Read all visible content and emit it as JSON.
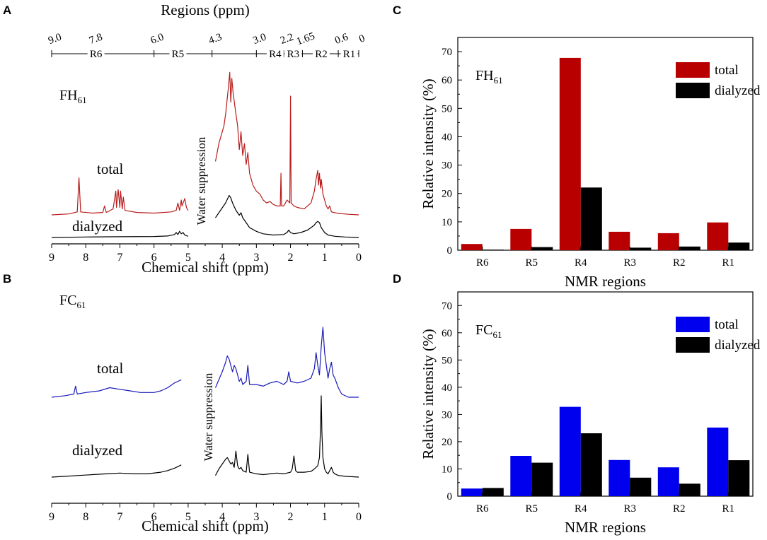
{
  "panels": {
    "A": {
      "letter": "A",
      "regions_title": "Regions (ppm)",
      "region_ticks": [
        "9.0",
        "7.8",
        "6.0",
        "4.3",
        "3.0",
        "2.2",
        "1.65",
        "0.6",
        "0"
      ],
      "region_tick_values": [
        9.0,
        7.8,
        6.0,
        4.3,
        3.0,
        2.2,
        1.65,
        0.6,
        0.0
      ],
      "region_names": [
        "R6",
        "R5",
        "R4",
        "R3",
        "R2",
        "R1"
      ],
      "sample_main": "FH",
      "sample_sub": "61",
      "total_label": "total",
      "dialyzed_label": "dialyzed",
      "water_label": "Water suppression",
      "x_ticks": [
        "9",
        "8",
        "7",
        "6",
        "5",
        "4",
        "3",
        "2",
        "1",
        "0"
      ],
      "xlabel": "Chemical shift (ppm)",
      "total_color": "#b81c1c",
      "dialyzed_color": "#000000"
    },
    "B": {
      "letter": "B",
      "sample_main": "FC",
      "sample_sub": "61",
      "total_label": "total",
      "dialyzed_label": "dialyzed",
      "water_label": "Water suppression",
      "x_ticks": [
        "9",
        "8",
        "7",
        "6",
        "5",
        "4",
        "3",
        "2",
        "1",
        "0"
      ],
      "xlabel": "Chemical shift (ppm)",
      "total_color": "#1a1ab8",
      "dialyzed_color": "#000000"
    },
    "C": {
      "letter": "C"
    },
    "D": {
      "letter": "D"
    }
  },
  "chart_data": [
    {
      "panel": "A",
      "type": "line",
      "title": "FH61",
      "xlabel": "Chemical shift (ppm)",
      "xlim": [
        9,
        0
      ],
      "series": [
        {
          "name": "total",
          "color": "#b81c1c",
          "x": [
            9.0,
            8.5,
            8.25,
            8.2,
            8.15,
            7.8,
            7.5,
            7.45,
            7.4,
            7.2,
            7.12,
            7.1,
            7.05,
            7.0,
            6.98,
            6.93,
            6.9,
            6.85,
            6.5,
            6.0,
            5.5,
            5.35,
            5.3,
            5.25,
            5.2,
            5.18,
            5.1,
            5.05,
            5.0,
            4.2,
            4.1,
            4.0,
            3.95,
            3.9,
            3.82,
            3.78,
            3.75,
            3.72,
            3.68,
            3.6,
            3.55,
            3.5,
            3.45,
            3.4,
            3.35,
            3.3,
            3.25,
            3.2,
            3.1,
            3.0,
            2.9,
            2.8,
            2.7,
            2.6,
            2.5,
            2.4,
            2.3,
            2.28,
            2.26,
            2.2,
            2.1,
            2.02,
            2.0,
            1.98,
            1.9,
            1.8,
            1.6,
            1.4,
            1.3,
            1.25,
            1.2,
            1.18,
            1.15,
            1.12,
            1.1,
            1.05,
            1.0,
            0.95,
            0.9,
            0.85,
            0.8,
            0.6,
            0.3,
            0.0
          ],
          "y": [
            0.0,
            0.3,
            1.0,
            12.5,
            1.0,
            0.6,
            0.8,
            3.0,
            0.8,
            2.0,
            8.0,
            2.5,
            8.5,
            2.5,
            8.0,
            2.0,
            6.0,
            1.5,
            0.8,
            0.6,
            1.0,
            1.5,
            4.0,
            1.5,
            5.0,
            3.0,
            5.5,
            2.5,
            1.5,
            18.0,
            24.0,
            28.0,
            30.0,
            34.0,
            43.0,
            48.0,
            38.0,
            46.0,
            41.0,
            34.0,
            30.0,
            22.0,
            28.0,
            20.0,
            24.0,
            17.0,
            21.0,
            14.0,
            10.0,
            8.0,
            7.0,
            5.0,
            4.0,
            4.5,
            3.5,
            3.0,
            3.0,
            14.0,
            3.0,
            3.0,
            5.0,
            4.0,
            40.0,
            4.0,
            3.0,
            2.5,
            2.0,
            4.0,
            8.0,
            12.0,
            15.0,
            10.0,
            14.0,
            9.0,
            12.0,
            7.0,
            5.0,
            3.0,
            2.0,
            3.0,
            1.0,
            0.5,
            0.2,
            0.0
          ]
        },
        {
          "name": "dialyzed",
          "color": "#000000",
          "x": [
            9.0,
            8.0,
            7.0,
            6.0,
            5.6,
            5.4,
            5.35,
            5.3,
            5.25,
            5.2,
            5.15,
            5.1,
            5.0,
            4.2,
            4.1,
            4.0,
            3.9,
            3.8,
            3.75,
            3.7,
            3.6,
            3.5,
            3.45,
            3.4,
            3.3,
            3.2,
            3.0,
            2.8,
            2.5,
            2.2,
            2.1,
            2.05,
            2.0,
            1.9,
            1.7,
            1.5,
            1.3,
            1.25,
            1.2,
            1.15,
            1.1,
            1.0,
            0.9,
            0.7,
            0.4,
            0.0
          ],
          "y": [
            0.0,
            0.2,
            0.3,
            0.4,
            0.6,
            1.2,
            2.0,
            1.2,
            2.5,
            1.5,
            2.0,
            1.0,
            0.5,
            8.0,
            10.0,
            12.0,
            14.0,
            17.0,
            16.0,
            14.0,
            11.0,
            9.0,
            10.0,
            8.0,
            6.0,
            4.0,
            2.5,
            1.5,
            1.0,
            1.2,
            2.0,
            3.0,
            2.0,
            1.5,
            2.0,
            3.0,
            5.0,
            6.0,
            6.5,
            6.0,
            4.0,
            2.0,
            1.0,
            0.5,
            0.2,
            0.0
          ]
        }
      ]
    },
    {
      "panel": "B",
      "type": "line",
      "title": "FC61",
      "xlabel": "Chemical shift (ppm)",
      "xlim": [
        9,
        0
      ],
      "series": [
        {
          "name": "total",
          "color": "#1a1ab8",
          "x": [
            9.0,
            8.6,
            8.35,
            8.3,
            8.25,
            8.0,
            7.6,
            7.3,
            7.0,
            6.7,
            6.4,
            6.0,
            5.8,
            5.6,
            5.4,
            5.2,
            4.2,
            4.0,
            3.9,
            3.85,
            3.8,
            3.75,
            3.7,
            3.65,
            3.6,
            3.55,
            3.5,
            3.45,
            3.4,
            3.3,
            3.25,
            3.2,
            3.0,
            2.8,
            2.6,
            2.4,
            2.2,
            2.1,
            2.05,
            2.0,
            1.8,
            1.6,
            1.4,
            1.3,
            1.25,
            1.2,
            1.15,
            1.1,
            1.05,
            1.0,
            0.95,
            0.9,
            0.85,
            0.8,
            0.75,
            0.7,
            0.6,
            0.5,
            0.3,
            0.0
          ],
          "y": [
            0.0,
            0.5,
            1.0,
            3.5,
            1.0,
            1.5,
            2.0,
            3.0,
            2.5,
            2.0,
            1.5,
            1.5,
            2.0,
            3.0,
            4.5,
            5.5,
            3.0,
            8.0,
            11.0,
            13.0,
            12.0,
            10.0,
            8.0,
            10.0,
            9.0,
            7.0,
            5.0,
            6.0,
            4.0,
            5.0,
            10.0,
            4.0,
            4.0,
            3.5,
            4.5,
            5.0,
            4.0,
            5.0,
            8.0,
            5.0,
            4.5,
            5.0,
            6.0,
            9.0,
            14.0,
            10.0,
            7.0,
            16.0,
            22.0,
            14.0,
            10.0,
            6.0,
            9.0,
            11.0,
            7.0,
            6.0,
            3.0,
            1.0,
            0.0,
            0.0
          ]
        },
        {
          "name": "dialyzed",
          "color": "#000000",
          "x": [
            9.0,
            8.6,
            8.2,
            7.8,
            7.4,
            7.0,
            6.6,
            6.2,
            5.8,
            5.6,
            5.4,
            5.25,
            5.2,
            4.2,
            4.1,
            4.0,
            3.9,
            3.85,
            3.8,
            3.75,
            3.7,
            3.65,
            3.6,
            3.55,
            3.5,
            3.45,
            3.4,
            3.3,
            3.25,
            3.2,
            3.0,
            2.8,
            2.6,
            2.4,
            2.2,
            2.0,
            1.95,
            1.9,
            1.85,
            1.8,
            1.6,
            1.4,
            1.3,
            1.2,
            1.15,
            1.12,
            1.1,
            1.08,
            1.05,
            1.0,
            0.95,
            0.9,
            0.85,
            0.8,
            0.75,
            0.7,
            0.6,
            0.4,
            0.0
          ],
          "y": [
            0.0,
            0.5,
            1.0,
            1.5,
            2.0,
            2.5,
            2.0,
            2.0,
            3.0,
            4.0,
            5.5,
            7.0,
            7.5,
            1.0,
            5.0,
            8.0,
            11.0,
            12.0,
            10.0,
            8.0,
            9.0,
            6.0,
            16.0,
            7.0,
            5.0,
            6.0,
            4.0,
            3.0,
            14.0,
            3.0,
            2.0,
            1.5,
            2.0,
            2.5,
            2.0,
            3.0,
            5.0,
            13.0,
            4.0,
            3.0,
            3.0,
            3.5,
            5.0,
            7.0,
            12.0,
            30.0,
            50.0,
            28.0,
            12.0,
            5.0,
            3.0,
            2.0,
            4.0,
            6.0,
            3.0,
            2.0,
            1.0,
            0.5,
            0.0
          ]
        }
      ]
    },
    {
      "panel": "C",
      "type": "bar",
      "title": "FH61",
      "title_main": "FH",
      "title_sub": "61",
      "categories": [
        "R6",
        "R5",
        "R4",
        "R3",
        "R2",
        "R1"
      ],
      "series": [
        {
          "name": "total",
          "color": "#b80000",
          "values": [
            2.2,
            7.5,
            67.8,
            6.5,
            6.0,
            9.8
          ]
        },
        {
          "name": "dialyzed",
          "color": "#000000",
          "values": [
            0.2,
            1.1,
            22.1,
            0.9,
            1.3,
            2.7
          ]
        }
      ],
      "xlabel": "NMR regions",
      "ylabel": "Relative intensity (%)",
      "ylim": [
        0,
        75
      ],
      "yticks": [
        0,
        10,
        20,
        30,
        40,
        50,
        60,
        70
      ],
      "legend": "top-right"
    },
    {
      "panel": "D",
      "type": "bar",
      "title": "FC61",
      "title_main": "FC",
      "title_sub": "61",
      "categories": [
        "R6",
        "R5",
        "R4",
        "R3",
        "R2",
        "R1"
      ],
      "series": [
        {
          "name": "total",
          "color": "#0000ee",
          "values": [
            2.8,
            14.8,
            32.8,
            13.3,
            10.6,
            25.2
          ]
        },
        {
          "name": "dialyzed",
          "color": "#000000",
          "values": [
            3.0,
            12.3,
            23.1,
            6.8,
            4.6,
            13.2
          ]
        }
      ],
      "xlabel": "NMR regions",
      "ylabel": "Relative intensity (%)",
      "ylim": [
        0,
        75
      ],
      "yticks": [
        0,
        10,
        20,
        30,
        40,
        50,
        60,
        70
      ],
      "legend": "top-right"
    }
  ]
}
